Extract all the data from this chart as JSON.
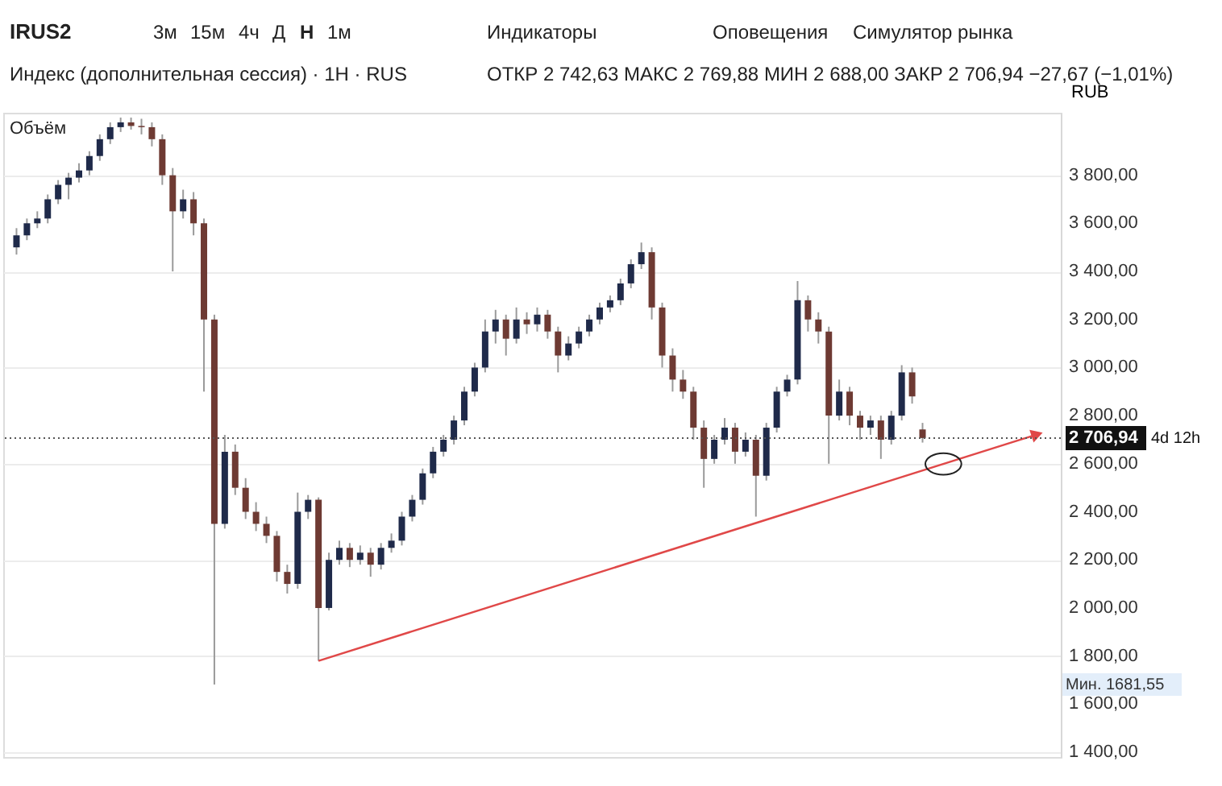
{
  "chart_data": {
    "type": "candlestick",
    "title": "IRUS2",
    "subtitle": "Индекс (дополнительная сессия) · 1H · RUS",
    "ylabel": "RUB",
    "annotations": [
      "3м",
      "15м",
      "4ч",
      "Д",
      "H",
      "1м",
      "Индикаторы",
      "Оповещения",
      "Симулятор рынка",
      "ОТКР 2 742,63 МАКС 2 769,88 МИН 2 688,00 ЗАКР 2 706,94 −27,67 (−1,01%)",
      "Объём",
      "4d 12h",
      "Мин. 1681,55"
    ],
    "categories": [
      null,
      null,
      null,
      null,
      null,
      null,
      null,
      null,
      null,
      null,
      null,
      null,
      null,
      null,
      null,
      null,
      null,
      null,
      null,
      null,
      null,
      null,
      null,
      null,
      null,
      null,
      null,
      null,
      null,
      null,
      null,
      null,
      null,
      null,
      null,
      null,
      null,
      null,
      null,
      null,
      null,
      null,
      null,
      null,
      null,
      null,
      null,
      null,
      null,
      null,
      null,
      null,
      null,
      null,
      null,
      null,
      null,
      null,
      null,
      null,
      null,
      null,
      null,
      null,
      null,
      null,
      null,
      null,
      null,
      null,
      null,
      null,
      null,
      null,
      null,
      null,
      null,
      null,
      null,
      null,
      null,
      null,
      null,
      null,
      null,
      null,
      null,
      null,
      null,
      null,
      null,
      null,
      null,
      null,
      null,
      null,
      null,
      null,
      null,
      null
    ],
    "ohlc": [
      [
        3500,
        3580,
        3470,
        3550
      ],
      [
        3550,
        3620,
        3530,
        3600
      ],
      [
        3600,
        3650,
        3580,
        3620
      ],
      [
        3620,
        3720,
        3600,
        3700
      ],
      [
        3700,
        3780,
        3680,
        3760
      ],
      [
        3760,
        3810,
        3700,
        3790
      ],
      [
        3790,
        3850,
        3770,
        3820
      ],
      [
        3820,
        3900,
        3800,
        3880
      ],
      [
        3880,
        3970,
        3860,
        3950
      ],
      [
        3950,
        4020,
        3930,
        4000
      ],
      [
        4000,
        4040,
        3980,
        4020
      ],
      [
        4020,
        4040,
        3990,
        4005
      ],
      [
        4005,
        4035,
        3970,
        4000
      ],
      [
        4000,
        4020,
        3920,
        3950
      ],
      [
        3950,
        3970,
        3760,
        3800
      ],
      [
        3800,
        3830,
        3400,
        3650
      ],
      [
        3650,
        3740,
        3620,
        3700
      ],
      [
        3700,
        3730,
        3550,
        3600
      ],
      [
        3600,
        3620,
        2900,
        3200
      ],
      [
        3200,
        3220,
        1681.55,
        2350
      ],
      [
        2350,
        2720,
        2330,
        2650
      ],
      [
        2650,
        2680,
        2470,
        2500
      ],
      [
        2500,
        2540,
        2370,
        2400
      ],
      [
        2400,
        2440,
        2320,
        2350
      ],
      [
        2350,
        2380,
        2270,
        2300
      ],
      [
        2300,
        2320,
        2110,
        2150
      ],
      [
        2150,
        2180,
        2060,
        2100
      ],
      [
        2100,
        2480,
        2080,
        2400
      ],
      [
        2400,
        2470,
        2370,
        2450
      ],
      [
        2450,
        2460,
        1780,
        2000
      ],
      [
        2000,
        2230,
        1990,
        2200
      ],
      [
        2200,
        2280,
        2180,
        2250
      ],
      [
        2250,
        2270,
        2170,
        2200
      ],
      [
        2200,
        2260,
        2180,
        2230
      ],
      [
        2230,
        2250,
        2130,
        2180
      ],
      [
        2180,
        2270,
        2160,
        2250
      ],
      [
        2250,
        2310,
        2230,
        2280
      ],
      [
        2280,
        2400,
        2260,
        2380
      ],
      [
        2380,
        2470,
        2360,
        2450
      ],
      [
        2450,
        2580,
        2430,
        2560
      ],
      [
        2560,
        2670,
        2540,
        2650
      ],
      [
        2650,
        2720,
        2630,
        2700
      ],
      [
        2700,
        2800,
        2680,
        2780
      ],
      [
        2780,
        2920,
        2760,
        2900
      ],
      [
        2900,
        3020,
        2880,
        3000
      ],
      [
        3000,
        3200,
        2980,
        3150
      ],
      [
        3150,
        3240,
        3100,
        3200
      ],
      [
        3200,
        3220,
        3050,
        3120
      ],
      [
        3120,
        3250,
        3100,
        3200
      ],
      [
        3200,
        3230,
        3140,
        3180
      ],
      [
        3180,
        3250,
        3150,
        3220
      ],
      [
        3220,
        3240,
        3120,
        3150
      ],
      [
        3150,
        3170,
        2980,
        3050
      ],
      [
        3050,
        3130,
        3030,
        3100
      ],
      [
        3100,
        3170,
        3080,
        3150
      ],
      [
        3150,
        3220,
        3130,
        3200
      ],
      [
        3200,
        3270,
        3180,
        3250
      ],
      [
        3250,
        3300,
        3230,
        3280
      ],
      [
        3280,
        3370,
        3260,
        3350
      ],
      [
        3350,
        3450,
        3330,
        3430
      ],
      [
        3430,
        3520,
        3410,
        3480
      ],
      [
        3480,
        3500,
        3200,
        3250
      ],
      [
        3250,
        3270,
        3000,
        3050
      ],
      [
        3050,
        3080,
        2900,
        2950
      ],
      [
        2950,
        2990,
        2870,
        2900
      ],
      [
        2900,
        2920,
        2700,
        2750
      ],
      [
        2750,
        2780,
        2500,
        2620
      ],
      [
        2620,
        2720,
        2600,
        2700
      ],
      [
        2700,
        2790,
        2680,
        2750
      ],
      [
        2750,
        2770,
        2600,
        2650
      ],
      [
        2650,
        2730,
        2630,
        2700
      ],
      [
        2700,
        2720,
        2380,
        2550
      ],
      [
        2550,
        2770,
        2530,
        2750
      ],
      [
        2750,
        2920,
        2730,
        2900
      ],
      [
        2900,
        2970,
        2880,
        2950
      ],
      [
        2950,
        3360,
        2930,
        3280
      ],
      [
        3280,
        3300,
        3150,
        3200
      ],
      [
        3200,
        3230,
        3100,
        3150
      ],
      [
        3150,
        3170,
        2600,
        2800
      ],
      [
        2800,
        2950,
        2780,
        2900
      ],
      [
        2900,
        2920,
        2760,
        2800
      ],
      [
        2800,
        2820,
        2700,
        2750
      ],
      [
        2750,
        2800,
        2720,
        2780
      ],
      [
        2780,
        2800,
        2620,
        2700
      ],
      [
        2700,
        2820,
        2680,
        2800
      ],
      [
        2800,
        3010,
        2780,
        2980
      ],
      [
        2980,
        3000,
        2850,
        2880
      ],
      [
        2742.63,
        2769.88,
        2688.0,
        2706.94
      ],
      null,
      null,
      null,
      null,
      null,
      null,
      null,
      null,
      null,
      null,
      null,
      null
    ],
    "series": [
      {
        "type": "line",
        "color": "#e04848",
        "values": [
          null,
          null,
          null,
          null,
          null,
          null,
          null,
          null,
          null,
          null,
          null,
          null,
          null,
          null,
          null,
          null,
          null,
          null,
          null,
          null,
          null,
          null,
          null,
          null,
          null,
          null,
          null,
          null,
          null,
          1780,
          null,
          null,
          null,
          null,
          null,
          null,
          null,
          null,
          null,
          null,
          null,
          null,
          null,
          null,
          null,
          null,
          null,
          null,
          null,
          null,
          null,
          null,
          null,
          null,
          null,
          null,
          null,
          null,
          null,
          null,
          null,
          null,
          null,
          null,
          null,
          null,
          null,
          null,
          null,
          null,
          null,
          null,
          null,
          null,
          null,
          null,
          null,
          null,
          null,
          null,
          null,
          null,
          null,
          null,
          null,
          null,
          null,
          null,
          null,
          null,
          null,
          null,
          null,
          null,
          null,
          null,
          null,
          null,
          2722,
          null
        ]
      }
    ],
    "ylim": [
      1380,
      4060
    ],
    "yticks": [
      {
        "value": 1400,
        "label": "1 400,00"
      },
      {
        "value": 1600,
        "label": "1 600,00"
      },
      {
        "value": 1800,
        "label": "1 800,00"
      },
      {
        "value": 2000,
        "label": "2 000,00"
      },
      {
        "value": 2200,
        "label": "2 200,00"
      },
      {
        "value": 2400,
        "label": "2 400,00"
      },
      {
        "value": 2600,
        "label": "2 600,00"
      },
      {
        "value": 2800,
        "label": "2 800,00"
      },
      {
        "value": 3000,
        "label": "3 000,00"
      },
      {
        "value": 3200,
        "label": "3 200,00"
      },
      {
        "value": 3400,
        "label": "3 400,00"
      },
      {
        "value": 3600,
        "label": "3 600,00"
      },
      {
        "value": 3800,
        "label": "3 800,00"
      }
    ],
    "grid": "y",
    "tick_labels": "y",
    "ref_lines": [
      {
        "axis": "y",
        "value": 2706.94,
        "label": "2 706,94",
        "color": "#555555",
        "line_style": "dotted"
      }
    ]
  }
}
